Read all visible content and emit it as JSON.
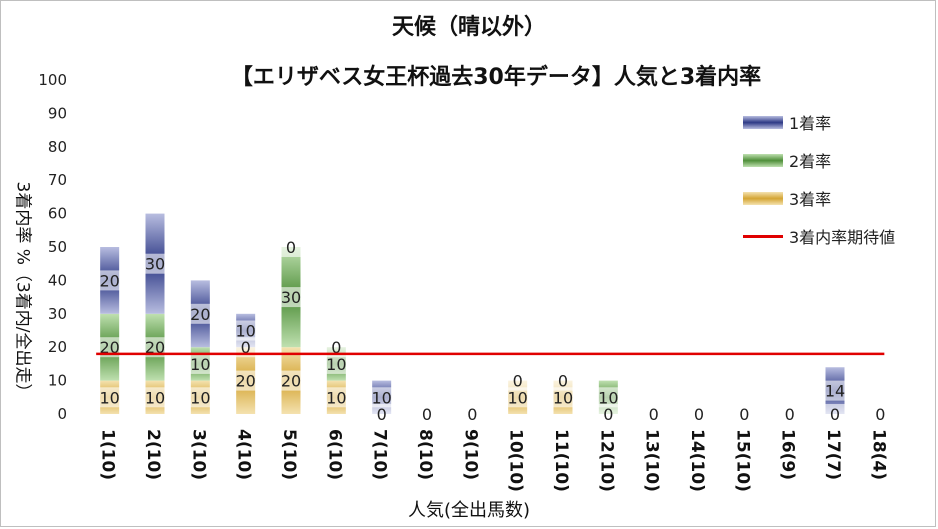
{
  "chart_data": {
    "type": "bar",
    "title": "天候（晴以外）",
    "subtitle": "【エリザベス女王杯過去30年データ】人気と3着内率",
    "xlabel": "人気(全出馬数)",
    "ylabel": "3着内率 %（3着内/全出走）",
    "ylim": [
      0,
      100
    ],
    "yticks": [
      "0",
      "10",
      "20",
      "30",
      "40",
      "50",
      "60",
      "70",
      "80",
      "90",
      "100"
    ],
    "categories": [
      "1(10)",
      "2(10)",
      "3(10)",
      "4(10)",
      "5(10)",
      "6(10)",
      "7(10)",
      "8(10)",
      "9(10)",
      "10(10)",
      "11(10)",
      "12(10)",
      "13(10)",
      "14(10)",
      "15(10)",
      "16(9)",
      "17(7)",
      "18(4)"
    ],
    "series": [
      {
        "name": "3着率",
        "values": [
          10,
          10,
          10,
          20,
          20,
          10,
          0,
          0,
          0,
          10,
          10,
          0,
          0,
          0,
          0,
          0,
          0,
          0
        ],
        "color": "#d4a534"
      },
      {
        "name": "2着率",
        "values": [
          20,
          20,
          10,
          0,
          30,
          10,
          0,
          0,
          0,
          0,
          0,
          10,
          0,
          0,
          0,
          0,
          0,
          0
        ],
        "color": "#4f8f3a"
      },
      {
        "name": "1着率",
        "values": [
          20,
          30,
          20,
          10,
          0,
          0,
          10,
          0,
          0,
          0,
          0,
          0,
          0,
          0,
          0,
          0,
          14,
          0
        ],
        "color": "#2e3a86"
      }
    ],
    "labels": {
      "3着率": [
        "10",
        "10",
        "10",
        "20",
        "20",
        "10",
        "0",
        "0",
        "0",
        "10",
        "10",
        "0",
        "0",
        "0",
        "0",
        "0",
        "0",
        "0"
      ],
      "2着率": [
        "20",
        "20",
        "10",
        "0",
        "30",
        "10",
        "",
        "",
        "",
        "0",
        "0",
        "10",
        "",
        "",
        "",
        "",
        "",
        ""
      ],
      "1着率": [
        "20",
        "30",
        "20",
        "10",
        "0",
        "0",
        "10",
        "",
        "",
        "",
        "",
        "",
        "",
        "",
        "",
        "",
        "14",
        ""
      ]
    },
    "reference_line": {
      "name": "3着内率期待値",
      "value": 18,
      "color": "#e00000"
    },
    "legend": "top-right",
    "grid": false
  }
}
